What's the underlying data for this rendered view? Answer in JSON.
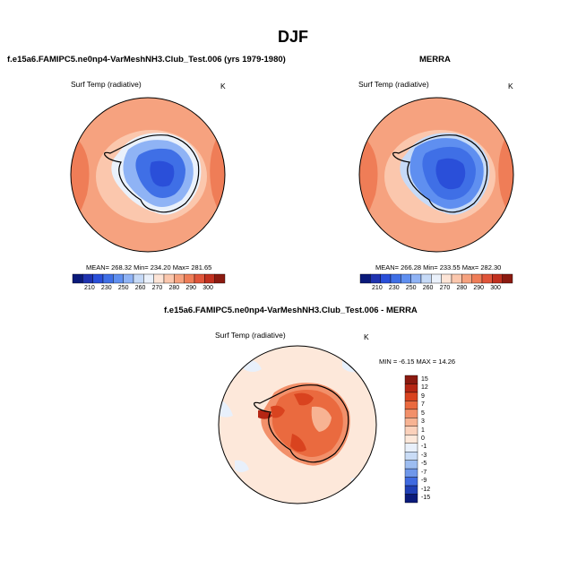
{
  "main_title": "DJF",
  "panels": [
    {
      "title": "f.e15a6.FAMIPC5.ne0np4-VarMeshNH3.Club_Test.006 (yrs 1979-1980)",
      "left_label": "Surf Temp (radiative)",
      "right_label": "K",
      "stats": "MEAN= 268.32  Min= 234.20  Max= 281.65"
    },
    {
      "title": "MERRA",
      "left_label": "Surf Temp (radiative)",
      "right_label": "K",
      "stats": "MEAN= 266.28  Min= 233.55  Max= 282.30"
    }
  ],
  "diff_panel": {
    "title": "f.e15a6.FAMIPC5.ne0np4-VarMeshNH3.Club_Test.006 - MERRA",
    "left_label": "Surf Temp (radiative)",
    "right_label": "K",
    "minmax": "MIN = -6.15  MAX = 14.26"
  },
  "abs_colorbar": {
    "colors": [
      "#0a1a7a",
      "#1f33b0",
      "#2a4fd9",
      "#3f6fe6",
      "#5f8ff0",
      "#8fb3f5",
      "#c6daf7",
      "#eaf1fb",
      "#fde4d6",
      "#fbc7ad",
      "#f6a27f",
      "#ef7d57",
      "#e0553a",
      "#c1301f",
      "#8b1a10"
    ],
    "ticks": [
      "210",
      "230",
      "250",
      "260",
      "270",
      "280",
      "290",
      "300"
    ]
  },
  "diff_colorbar": {
    "colors_top_to_bottom": [
      "#8b1a10",
      "#b52614",
      "#d9431f",
      "#ea6a3f",
      "#f2906a",
      "#f7b393",
      "#fbd1bb",
      "#fde8da",
      "#e8f0fb",
      "#c9dcf6",
      "#9dbdf1",
      "#6f97ea",
      "#3f6ae0",
      "#1f3fb5",
      "#0a1a7a"
    ],
    "ticks": [
      "15",
      "12",
      "9",
      "7",
      "5",
      "3",
      "1",
      "0",
      "-1",
      "-3",
      "-5",
      "-7",
      "-9",
      "-12",
      "-15"
    ]
  },
  "chart_data": [
    {
      "type": "heatmap",
      "title": "f.e15a6.FAMIPC5.ne0np4-VarMeshNH3.Club_Test.006 (yrs 1979-1980)",
      "variable": "Surf Temp (radiative)",
      "units": "K",
      "projection": "south polar stereographic",
      "mean": 268.32,
      "min": 234.2,
      "max": 281.65,
      "colorbar_levels": [
        210,
        220,
        230,
        240,
        250,
        255,
        260,
        265,
        270,
        275,
        280,
        285,
        290,
        295,
        300
      ]
    },
    {
      "type": "heatmap",
      "title": "MERRA",
      "variable": "Surf Temp (radiative)",
      "units": "K",
      "projection": "south polar stereographic",
      "mean": 266.28,
      "min": 233.55,
      "max": 282.3,
      "colorbar_levels": [
        210,
        220,
        230,
        240,
        250,
        255,
        260,
        265,
        270,
        275,
        280,
        285,
        290,
        295,
        300
      ]
    },
    {
      "type": "heatmap",
      "title": "f.e15a6.FAMIPC5.ne0np4-VarMeshNH3.Club_Test.006 - MERRA",
      "variable": "Surf Temp (radiative)",
      "units": "K",
      "projection": "south polar stereographic",
      "min": -6.15,
      "max": 14.26,
      "colorbar_levels": [
        -15,
        -12,
        -9,
        -7,
        -5,
        -3,
        -1,
        0,
        1,
        3,
        5,
        7,
        9,
        12,
        15
      ]
    }
  ]
}
